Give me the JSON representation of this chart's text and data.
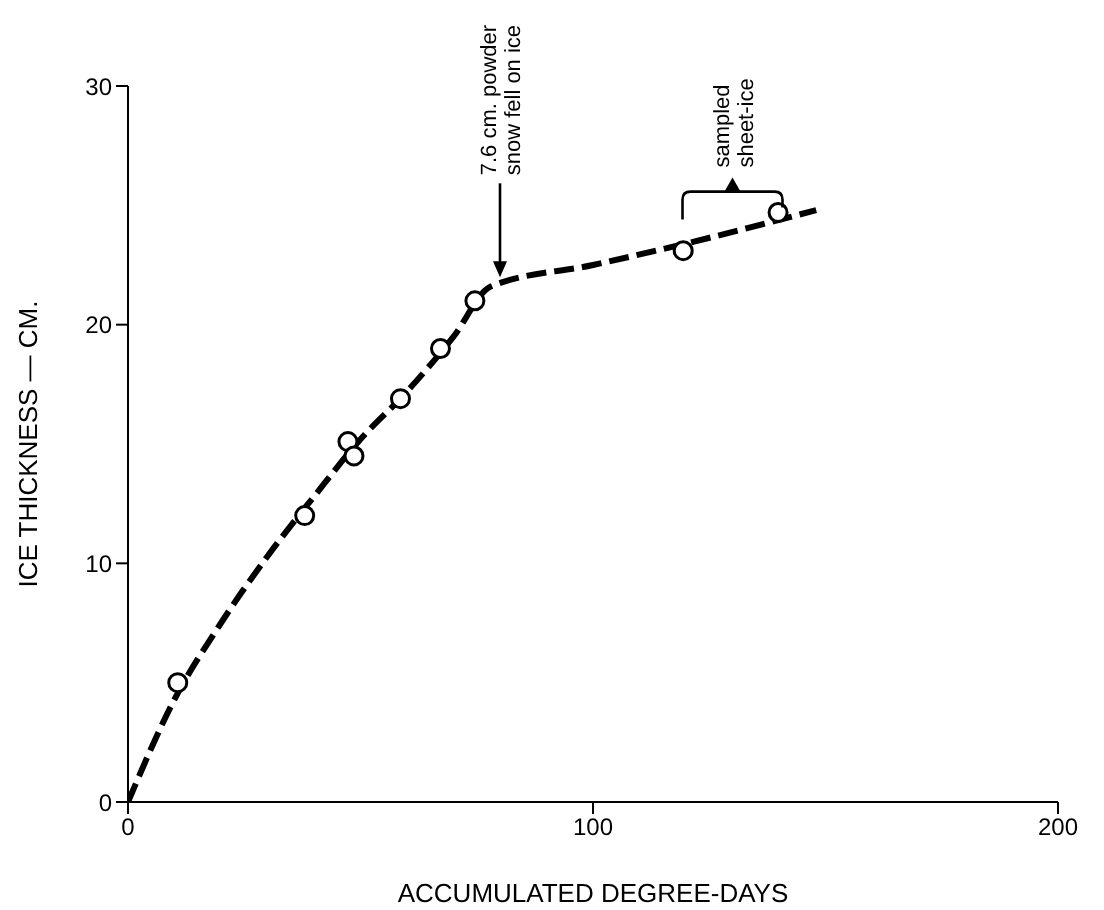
{
  "chart_data": {
    "type": "scatter",
    "xlabel": "ACCUMULATED DEGREE-DAYS",
    "ylabel": "ICE THICKNESS — CM.",
    "xlim": [
      0,
      200
    ],
    "xticks": [
      0,
      100,
      200
    ],
    "ylim": [
      0,
      30
    ],
    "yticks": [
      0,
      10,
      20,
      30
    ],
    "grid": false,
    "legend": false,
    "series": [
      {
        "color": "#000000",
        "marker": "circle",
        "x": [
          10.7,
          38,
          47.3,
          48.6,
          58.6,
          67.2,
          74.6,
          119.4,
          139.8
        ],
        "values": [
          5.0,
          12.0,
          15.1,
          14.5,
          16.9,
          19.0,
          21.0,
          23.1,
          24.7
        ]
      },
      {
        "type": "line",
        "color": "#000000",
        "marker": "none",
        "line_style": "dashed",
        "x": [
          0,
          10,
          20,
          30,
          40,
          50,
          60,
          70,
          78,
          100,
          120,
          148
        ],
        "values": [
          0,
          4.3,
          7.5,
          10.3,
          12.8,
          15.2,
          17.2,
          19.5,
          21.6,
          22.5,
          23.4,
          24.8
        ]
      }
    ],
    "annotations": [
      {
        "text": "7.6 cm. powder\nsnow fell on ice",
        "x": 80,
        "y": 21.9
      },
      {
        "text": "sampled\nsheet-ice",
        "x": 130,
        "y": 23.9
      }
    ]
  }
}
